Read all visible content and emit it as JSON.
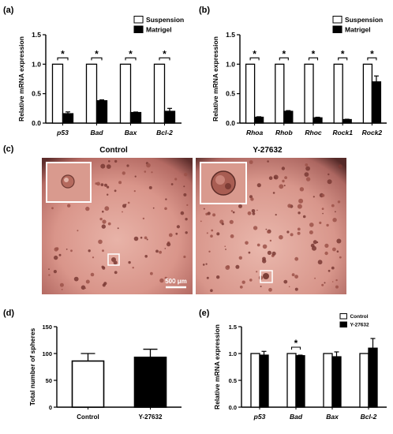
{
  "panel_labels": {
    "a": "(a)",
    "b": "(b)",
    "c": "(c)",
    "d": "(d)",
    "e": "(e)"
  },
  "images": {
    "left_title": "Control",
    "right_title": "Y-27632",
    "scale_bar": "500 μm"
  },
  "chart_data": [
    {
      "id": "a",
      "type": "bar",
      "categories": [
        "p53",
        "Bad",
        "Bax",
        "Bcl-2"
      ],
      "series": [
        {
          "name": "Suspension",
          "values": [
            1.0,
            1.0,
            1.0,
            1.0
          ],
          "errors": [
            0,
            0,
            0,
            0
          ],
          "fill": "#ffffff"
        },
        {
          "name": "Matrigel",
          "values": [
            0.16,
            0.38,
            0.18,
            0.2
          ],
          "errors": [
            0.03,
            0.015,
            0.008,
            0.05
          ],
          "fill": "#000000"
        }
      ],
      "significance": [
        "*",
        "*",
        "*",
        "*"
      ],
      "ylabel": "Relative mRNA expression",
      "ylim": [
        0,
        1.5
      ],
      "yticks": [
        "0.0",
        "0.5",
        "1.0",
        "1.5"
      ],
      "legend": "top-right",
      "grid": false
    },
    {
      "id": "b",
      "type": "bar",
      "categories": [
        "Rhoa",
        "Rhob",
        "Rhoc",
        "Rock1",
        "Rock2"
      ],
      "series": [
        {
          "name": "Suspension",
          "values": [
            1.0,
            1.0,
            1.0,
            1.0,
            1.0
          ],
          "errors": [
            0,
            0,
            0,
            0,
            0
          ],
          "fill": "#ffffff"
        },
        {
          "name": "Matrigel",
          "values": [
            0.1,
            0.2,
            0.09,
            0.06,
            0.7
          ],
          "errors": [
            0.008,
            0.012,
            0.01,
            0.006,
            0.1
          ],
          "fill": "#000000"
        }
      ],
      "significance": [
        "*",
        "*",
        "*",
        "*",
        "*"
      ],
      "ylabel": "Relative mRNA expression",
      "ylim": [
        0,
        1.5
      ],
      "yticks": [
        "0.0",
        "0.5",
        "1.0",
        "1.5"
      ],
      "legend": "top-right",
      "grid": false
    },
    {
      "id": "d",
      "type": "bar",
      "categories": [
        "Control",
        "Y-27632"
      ],
      "series": [
        {
          "name": "",
          "values": [
            86,
            93
          ],
          "errors": [
            14,
            15
          ],
          "fills": [
            "#ffffff",
            "#000000"
          ]
        }
      ],
      "ylabel": "Total number of spheres",
      "ylim": [
        0,
        150
      ],
      "yticks": [
        "0",
        "50",
        "100",
        "150"
      ],
      "grid": false
    },
    {
      "id": "e",
      "type": "bar",
      "categories": [
        "p53",
        "Bad",
        "Bax",
        "Bcl-2"
      ],
      "series": [
        {
          "name": "Control",
          "values": [
            1.0,
            1.0,
            1.0,
            1.0
          ],
          "errors": [
            0,
            0,
            0,
            0
          ],
          "fill": "#ffffff"
        },
        {
          "name": "Y-27632",
          "values": [
            0.97,
            0.96,
            0.94,
            1.1
          ],
          "errors": [
            0.07,
            0.01,
            0.09,
            0.18
          ],
          "fill": "#000000"
        }
      ],
      "significance": [
        "",
        "*",
        "",
        ""
      ],
      "ylabel": "Relative mRNA expression",
      "ylim": [
        0,
        1.5
      ],
      "yticks": [
        "0.0",
        "0.5",
        "1.0",
        "1.5"
      ],
      "legend": "top-right",
      "grid": false
    }
  ]
}
